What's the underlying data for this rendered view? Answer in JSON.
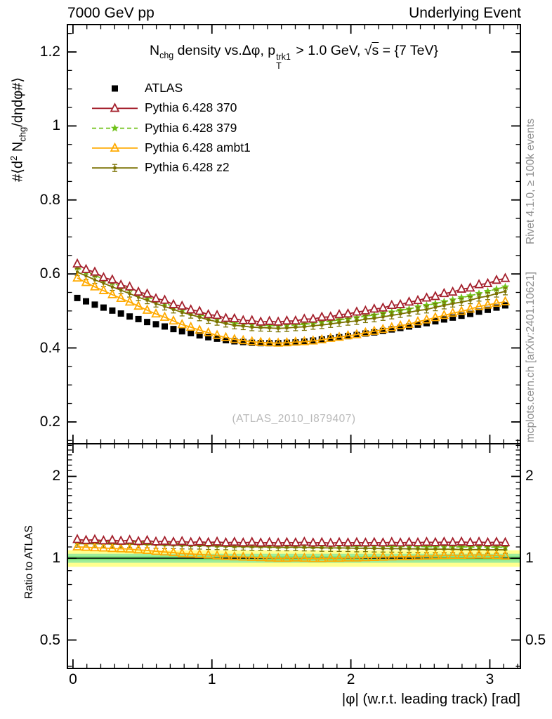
{
  "header": {
    "left": "7000 GeV pp",
    "right": "Underlying Event"
  },
  "plot_title": {
    "n": "N",
    "n_sub": "chg",
    "mid": " density vs.Δφ, p",
    "p_sup": "trk1",
    "p_sub": "T",
    "cut": " > 1.0 GeV, ",
    "sqrt_sign": "√",
    "sqrt_arg": "s",
    "energy": " = {7 TeV}"
  },
  "y_axis_main": {
    "l1": "#⟨d",
    "sup": "2",
    "l2": " N",
    "sub": "chg",
    "l3": "/dηdφ#⟩"
  },
  "y_axis_ratio_label": "Ratio to ATLAS",
  "x_axis_label": "|φ| (w.r.t. leading track) [rad]",
  "side_notes": {
    "right_top": "Rivet 4.1.0, ≥ 100k events",
    "right_bottom": "mcplots.cern.ch [arXiv:2401.10621]"
  },
  "watermark": "(ATLAS_2010_I879407)",
  "axes": {
    "x": {
      "range": [
        -0.04,
        3.22
      ],
      "majors": [
        0,
        1,
        2,
        3
      ],
      "major_labels": [
        "0",
        "1",
        "2",
        "3"
      ],
      "minor_step": 0.1
    },
    "y_main": {
      "range": [
        0.141,
        1.274
      ],
      "majors": [
        0.2,
        0.4,
        0.6,
        0.8,
        1.0,
        1.2
      ],
      "major_labels": [
        "0.2",
        "0.4",
        "0.6",
        "0.8",
        "1",
        "1.2"
      ],
      "minor_step": 0.05
    },
    "y_ratio": {
      "scale": "log",
      "range": [
        0.393,
        2.637
      ],
      "majors": [
        0.5,
        1,
        2
      ],
      "major_labels": [
        "0.5",
        "1",
        "2"
      ],
      "minors": [
        0.4,
        0.6,
        0.7,
        0.8,
        0.9,
        1.1,
        1.2,
        1.3,
        1.4,
        1.5,
        1.6,
        1.7,
        1.8,
        1.9,
        2.1,
        2.2,
        2.3,
        2.4,
        2.5,
        2.6
      ]
    }
  },
  "chart_data": {
    "type": "line",
    "title": "Nchg density vs. Δφ, pT^trk1 > 1.0 GeV, √s = 7 TeV",
    "xlabel": "|φ| (w.r.t. leading track) [rad]",
    "ylabel": "#⟨d² Nchg/dηdφ#⟩",
    "ratio_ylabel": "Ratio to ATLAS",
    "legend_position": "top-left",
    "x": [
      0.031,
      0.094,
      0.157,
      0.22,
      0.283,
      0.345,
      0.408,
      0.471,
      0.534,
      0.597,
      0.66,
      0.723,
      0.785,
      0.848,
      0.911,
      0.974,
      1.037,
      1.1,
      1.162,
      1.225,
      1.288,
      1.351,
      1.414,
      1.477,
      1.539,
      1.602,
      1.665,
      1.728,
      1.791,
      1.854,
      1.916,
      1.979,
      2.042,
      2.105,
      2.168,
      2.231,
      2.294,
      2.356,
      2.419,
      2.482,
      2.545,
      2.608,
      2.671,
      2.733,
      2.796,
      2.859,
      2.922,
      2.985,
      3.048,
      3.111
    ],
    "series": [
      {
        "name": "ATLAS",
        "color": "#000000",
        "marker": "square",
        "line": "none",
        "values": [
          0.535,
          0.526,
          0.517,
          0.509,
          0.501,
          0.493,
          0.485,
          0.478,
          0.47,
          0.464,
          0.458,
          0.451,
          0.445,
          0.44,
          0.434,
          0.429,
          0.425,
          0.421,
          0.418,
          0.416,
          0.414,
          0.413,
          0.413,
          0.413,
          0.414,
          0.415,
          0.417,
          0.42,
          0.423,
          0.426,
          0.429,
          0.432,
          0.435,
          0.439,
          0.442,
          0.446,
          0.45,
          0.454,
          0.458,
          0.463,
          0.467,
          0.472,
          0.477,
          0.482,
          0.487,
          0.492,
          0.498,
          0.503,
          0.509,
          0.515
        ]
      },
      {
        "name": "Pythia 6.428 370",
        "color": "#A4202C",
        "marker": "triangle-open-white",
        "line": "solid",
        "values": [
          0.627,
          0.612,
          0.605,
          0.59,
          0.584,
          0.57,
          0.565,
          0.551,
          0.546,
          0.533,
          0.529,
          0.517,
          0.513,
          0.503,
          0.499,
          0.49,
          0.488,
          0.48,
          0.479,
          0.474,
          0.474,
          0.47,
          0.472,
          0.47,
          0.473,
          0.473,
          0.478,
          0.478,
          0.483,
          0.484,
          0.49,
          0.492,
          0.497,
          0.5,
          0.505,
          0.508,
          0.515,
          0.517,
          0.524,
          0.528,
          0.535,
          0.539,
          0.547,
          0.551,
          0.559,
          0.562,
          0.571,
          0.574,
          0.583,
          0.588
        ]
      },
      {
        "name": "Pythia 6.428 379",
        "color": "#70C21A",
        "marker": "star",
        "line": "dashed",
        "values": [
          0.618,
          0.606,
          0.597,
          0.585,
          0.577,
          0.566,
          0.559,
          0.548,
          0.537,
          0.53,
          0.522,
          0.511,
          0.505,
          0.496,
          0.49,
          0.484,
          0.477,
          0.473,
          0.467,
          0.465,
          0.463,
          0.46,
          0.461,
          0.459,
          0.461,
          0.462,
          0.464,
          0.466,
          0.47,
          0.472,
          0.476,
          0.478,
          0.482,
          0.486,
          0.489,
          0.494,
          0.497,
          0.502,
          0.505,
          0.511,
          0.515,
          0.52,
          0.525,
          0.53,
          0.536,
          0.541,
          0.547,
          0.553,
          0.559,
          0.565
        ]
      },
      {
        "name": "Pythia 6.428 ambt1",
        "color": "#FFAA00",
        "marker": "triangle-open",
        "line": "solid",
        "values": [
          0.589,
          0.577,
          0.565,
          0.555,
          0.544,
          0.534,
          0.524,
          0.513,
          0.502,
          0.492,
          0.483,
          0.473,
          0.463,
          0.456,
          0.448,
          0.441,
          0.434,
          0.428,
          0.423,
          0.42,
          0.417,
          0.415,
          0.414,
          0.413,
          0.414,
          0.416,
          0.417,
          0.419,
          0.422,
          0.426,
          0.429,
          0.433,
          0.436,
          0.441,
          0.445,
          0.45,
          0.455,
          0.46,
          0.464,
          0.471,
          0.476,
          0.482,
          0.488,
          0.494,
          0.499,
          0.505,
          0.512,
          0.516,
          0.521,
          0.525
        ]
      },
      {
        "name": "Pythia 6.428 z2",
        "color": "#7A7100",
        "marker": "ibeam",
        "line": "solid",
        "values": [
          0.605,
          0.595,
          0.584,
          0.575,
          0.565,
          0.556,
          0.547,
          0.537,
          0.529,
          0.52,
          0.512,
          0.504,
          0.496,
          0.49,
          0.483,
          0.476,
          0.471,
          0.466,
          0.461,
          0.459,
          0.456,
          0.455,
          0.454,
          0.453,
          0.454,
          0.456,
          0.457,
          0.46,
          0.462,
          0.465,
          0.468,
          0.471,
          0.473,
          0.478,
          0.48,
          0.484,
          0.488,
          0.492,
          0.496,
          0.501,
          0.504,
          0.51,
          0.515,
          0.52,
          0.524,
          0.529,
          0.536,
          0.54,
          0.547,
          0.553
        ]
      }
    ],
    "draw_order": [
      0,
      2,
      4,
      3,
      1
    ],
    "ratio": {
      "reference": "ATLAS",
      "unity_line": 1,
      "bands": [
        {
          "lo": 0.93,
          "hi": 1.07,
          "color": "#FFFF8F"
        },
        {
          "lo": 0.962,
          "hi": 1.038,
          "color": "#9FEC9B"
        },
        {
          "lo": 0.984,
          "hi": 1.016,
          "color": "#76E376"
        }
      ]
    }
  }
}
